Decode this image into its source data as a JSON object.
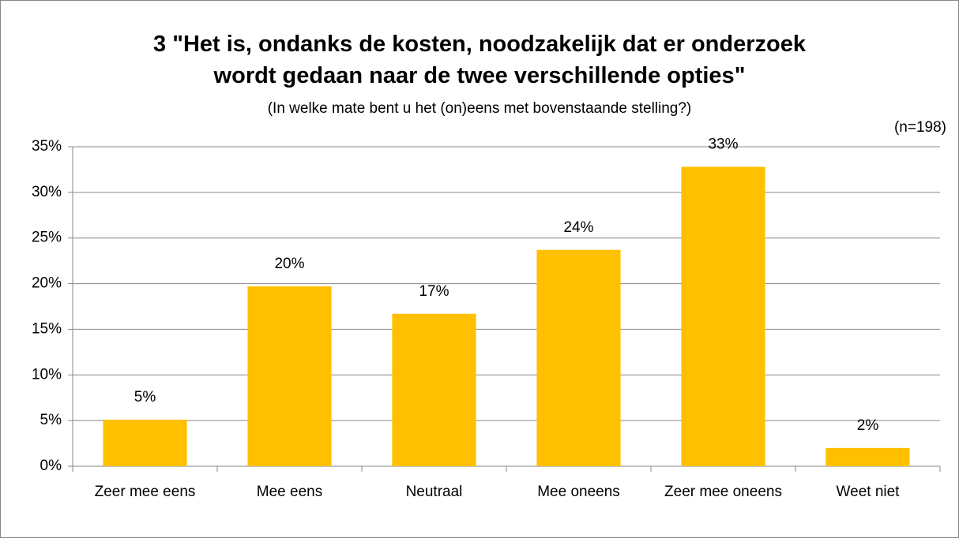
{
  "chart_data": {
    "type": "bar",
    "title": "3 \"Het is, ondanks de kosten, noodzakelijk dat er onderzoek wordt gedaan naar de twee verschillende opties\"",
    "subtitle": "(In welke mate bent u het (on)eens met bovenstaande stelling?)",
    "annotation": "(n=198)",
    "categories": [
      "Zeer mee eens",
      "Mee eens",
      "Neutraal",
      "Mee oneens",
      "Zeer mee oneens",
      "Weet niet"
    ],
    "values": [
      5.1,
      19.7,
      16.7,
      23.7,
      32.8,
      2.0
    ],
    "value_labels": [
      "5%",
      "20%",
      "17%",
      "24%",
      "33%",
      "2%"
    ],
    "color": "#ffc000",
    "ylim": [
      0,
      35
    ],
    "yticks": [
      {
        "value": 0,
        "label": "0%"
      },
      {
        "value": 5,
        "label": "5%"
      },
      {
        "value": 10,
        "label": "10%"
      },
      {
        "value": 15,
        "label": "15%"
      },
      {
        "value": 20,
        "label": "20%"
      },
      {
        "value": 25,
        "label": "25%"
      },
      {
        "value": 30,
        "label": "30%"
      },
      {
        "value": 35,
        "label": "35%"
      }
    ],
    "grid": true
  }
}
